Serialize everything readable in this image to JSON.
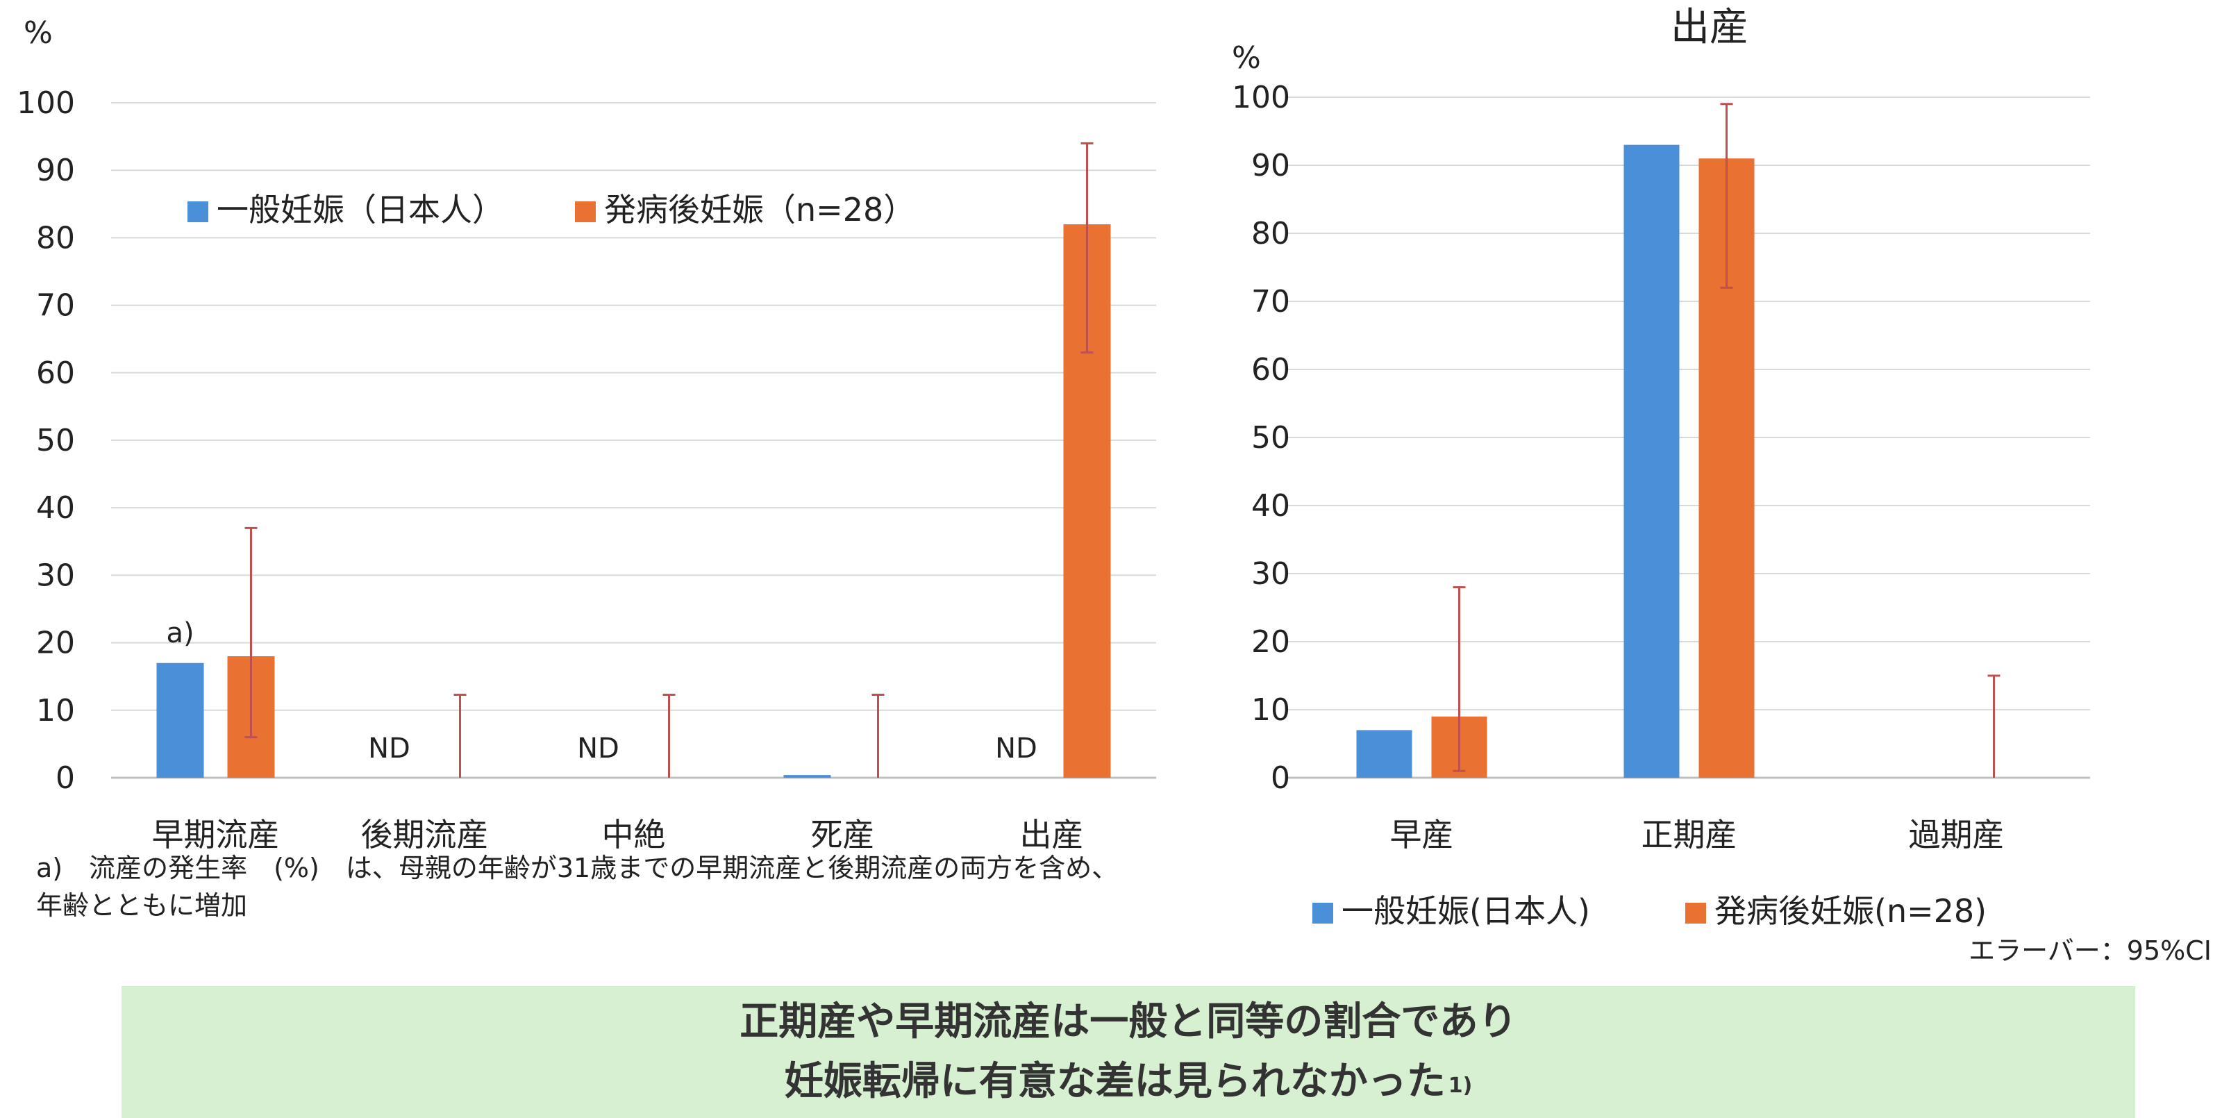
{
  "chart_data": [
    {
      "type": "bar",
      "title": "",
      "ylabel": "%",
      "xlabel": "",
      "ylim": [
        0,
        100
      ],
      "yticks": [
        0,
        10,
        20,
        30,
        40,
        50,
        60,
        70,
        80,
        90,
        100
      ],
      "categories": [
        "早期流産",
        "後期流産",
        "中絶",
        "死産",
        "出産"
      ],
      "series": [
        {
          "name": "一般妊娠（日本人）",
          "color": "#4a90d9",
          "values": [
            17,
            null,
            null,
            0.4,
            null
          ],
          "labels": [
            "a)",
            "ND",
            "ND",
            "",
            "ND"
          ]
        },
        {
          "name": "発病後妊娠（n=28）",
          "color": "#e97132",
          "values": [
            18,
            0,
            0,
            0,
            82
          ],
          "ci_low": [
            6,
            0,
            0,
            0,
            63
          ],
          "ci_high": [
            37,
            12.3,
            12.3,
            12.3,
            94
          ]
        }
      ],
      "legend": "top-left",
      "grid": true,
      "footnote": [
        "a)　流産の発生率　(%)　は、母親の年齢が31歳までの早期流産と後期流産の両方を含め、",
        "年齢とともに増加"
      ]
    },
    {
      "type": "bar",
      "title": "出産",
      "ylabel": "%",
      "xlabel": "",
      "ylim": [
        0,
        100
      ],
      "yticks": [
        0,
        10,
        20,
        30,
        40,
        50,
        60,
        70,
        80,
        90,
        100
      ],
      "categories": [
        "早産",
        "正期産",
        "過期産"
      ],
      "series": [
        {
          "name": "一般妊娠(日本人)",
          "color": "#4a90d9",
          "values": [
            7,
            93,
            null
          ]
        },
        {
          "name": "発病後妊娠(n=28)",
          "color": "#e97132",
          "values": [
            9,
            91,
            0
          ],
          "ci_low": [
            1,
            72,
            0
          ],
          "ci_high": [
            28,
            99,
            15
          ]
        }
      ],
      "legend": "bottom",
      "grid": true,
      "note": "エラーバー：95%CI"
    }
  ],
  "summary": {
    "line1": "正期産や早期流産は一般と同等の割合であり",
    "line2": "妊娠転帰に有意な差は見られなかった",
    "ref": "1)"
  }
}
